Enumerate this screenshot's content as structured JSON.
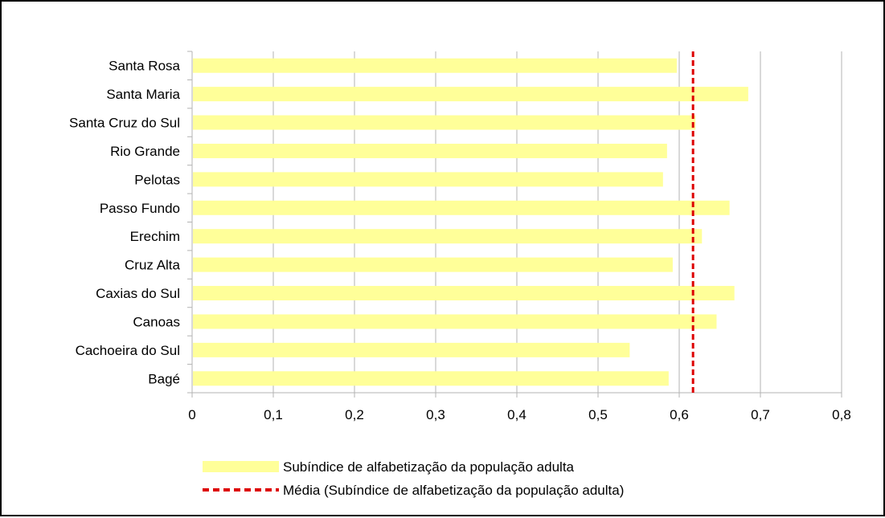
{
  "chart_data": {
    "type": "bar",
    "orientation": "horizontal",
    "categories": [
      "Santa Rosa",
      "Santa Maria",
      "Santa Cruz do Sul",
      "Rio Grande",
      "Pelotas",
      "Passo Fundo",
      "Erechim",
      "Cruz Alta",
      "Caxias do Sul",
      "Canoas",
      "Cachoeira do Sul",
      "Bagé"
    ],
    "series": [
      {
        "name": "Subíndice de alfabetização da população adulta",
        "color": "#ffff99",
        "values": [
          0.597,
          0.685,
          0.62,
          0.585,
          0.58,
          0.662,
          0.628,
          0.592,
          0.668,
          0.646,
          0.539,
          0.587
        ]
      }
    ],
    "reference_line": {
      "name": "Média (Subíndice de alfabetização da população adulta)",
      "value": 0.617,
      "color": "#dd0000",
      "style": "dashed"
    },
    "xlim": [
      0,
      0.8
    ],
    "xticks": [
      0,
      0.1,
      0.2,
      0.3,
      0.4,
      0.5,
      0.6,
      0.7,
      0.8
    ],
    "xtick_labels": [
      "0",
      "0,1",
      "0,2",
      "0,3",
      "0,4",
      "0,5",
      "0,6",
      "0,7",
      "0,8"
    ],
    "grid": "vertical",
    "legend_position": "bottom",
    "title": "",
    "xlabel": "",
    "ylabel": ""
  }
}
